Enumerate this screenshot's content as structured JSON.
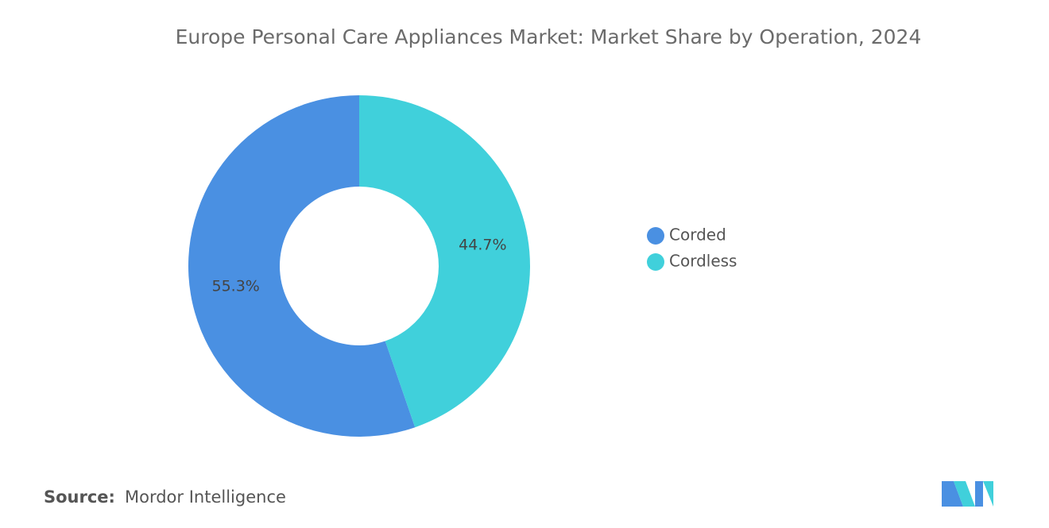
{
  "chart_data": {
    "type": "donut",
    "title": "Europe Personal Care Appliances Market: Market Share by Operation, 2024",
    "categories": [
      "Corded",
      "Cordless"
    ],
    "values": [
      55.3,
      44.7
    ],
    "value_labels": [
      "55.3%",
      "44.7%"
    ],
    "colors": [
      "#4a90e2",
      "#40d0db"
    ],
    "legend": "right"
  },
  "source_label": "Source:",
  "source": "Mordor Intelligence"
}
